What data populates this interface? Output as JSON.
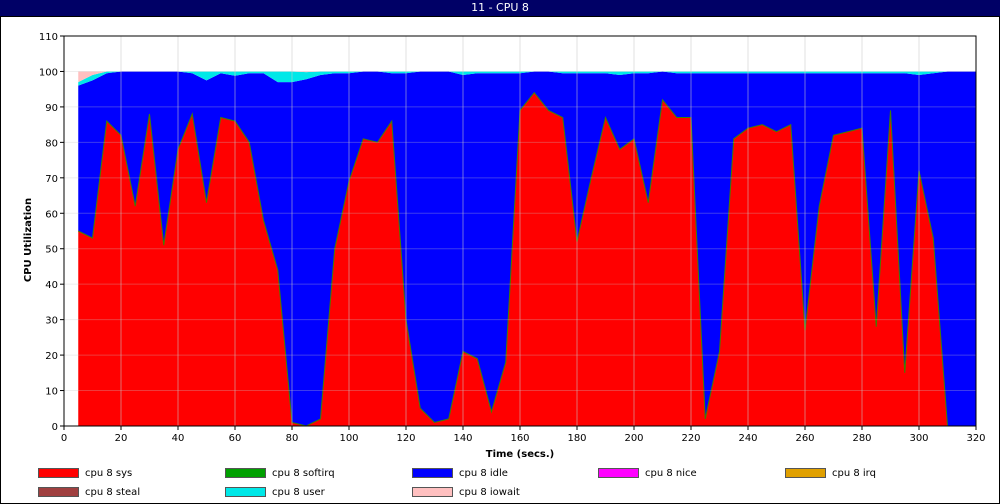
{
  "window": {
    "title": "11 - CPU 8"
  },
  "chart_data": {
    "type": "area",
    "stacked": true,
    "title": "",
    "xlabel": "Time (secs.)",
    "ylabel": "CPU Utilization",
    "xlim": [
      0,
      320
    ],
    "ylim": [
      0,
      110
    ],
    "x_ticks": [
      0,
      20,
      40,
      60,
      80,
      100,
      120,
      140,
      160,
      180,
      200,
      220,
      240,
      260,
      280,
      300,
      320
    ],
    "y_ticks": [
      0,
      10,
      20,
      30,
      40,
      50,
      60,
      70,
      80,
      90,
      100,
      110
    ],
    "grid": true,
    "legend_position": "bottom",
    "x": [
      5,
      10,
      15,
      20,
      25,
      30,
      35,
      40,
      45,
      50,
      55,
      60,
      65,
      70,
      75,
      80,
      85,
      90,
      95,
      100,
      105,
      110,
      115,
      120,
      125,
      130,
      135,
      140,
      145,
      150,
      155,
      160,
      165,
      170,
      175,
      180,
      185,
      190,
      195,
      200,
      205,
      210,
      215,
      220,
      225,
      230,
      235,
      240,
      245,
      250,
      255,
      260,
      265,
      270,
      275,
      280,
      285,
      290,
      295,
      300,
      305,
      310,
      315,
      320
    ],
    "series": [
      {
        "name": "cpu 8 sys",
        "color": "#ff0000",
        "values": [
          55,
          53,
          86,
          82,
          62,
          88,
          51,
          78,
          88,
          63,
          87,
          86,
          80,
          58,
          44,
          1,
          0,
          2,
          50,
          69,
          81,
          80,
          86,
          30,
          5,
          1,
          2,
          21,
          19,
          4,
          18,
          89,
          94,
          89,
          87,
          52,
          70,
          87,
          78,
          81,
          63,
          92,
          87,
          87,
          2,
          21,
          81,
          84,
          85,
          83,
          85,
          27,
          62,
          82,
          83,
          84,
          28,
          89,
          15,
          72,
          53,
          0,
          0,
          0
        ]
      },
      {
        "name": "cpu 8 softirq",
        "color": "#00a000",
        "values": [
          0,
          0,
          0,
          0,
          0,
          0,
          0,
          0,
          0,
          0,
          0,
          0,
          0,
          0,
          0,
          0,
          0,
          0,
          0,
          0,
          0,
          0,
          0,
          0,
          0,
          0,
          0,
          0,
          0,
          0,
          0,
          0,
          0,
          0,
          0,
          0,
          0,
          0,
          0,
          0,
          0,
          0,
          0,
          0,
          0,
          0,
          0,
          0,
          0,
          0,
          0,
          0,
          0,
          0,
          0,
          0,
          0,
          0,
          0,
          0,
          0,
          0,
          0,
          0
        ]
      },
      {
        "name": "cpu 8 idle",
        "color": "#0000ff",
        "values": [
          41,
          44.5,
          13.5,
          18,
          38,
          12,
          49,
          22,
          11.5,
          34.5,
          12.5,
          12.8,
          19.5,
          41.5,
          53,
          96,
          97.8,
          97,
          49.5,
          30.5,
          19,
          20,
          13.5,
          69.5,
          95,
          99,
          98,
          78,
          80.5,
          95.5,
          81.5,
          10.5,
          6,
          11,
          12.5,
          47.5,
          29.5,
          12.5,
          21,
          18.5,
          36.5,
          8,
          12.5,
          12.5,
          97.5,
          78.5,
          18.5,
          15.5,
          14.5,
          16.5,
          14.5,
          72.5,
          37.5,
          17.5,
          16.5,
          15.5,
          71.5,
          10.5,
          84.5,
          27,
          46.5,
          100,
          100,
          100
        ]
      },
      {
        "name": "cpu 8 nice",
        "color": "#ff00ff",
        "values": [
          0,
          0,
          0,
          0,
          0,
          0,
          0,
          0,
          0,
          0,
          0,
          0,
          0,
          0,
          0,
          0,
          0,
          0,
          0,
          0,
          0,
          0,
          0,
          0,
          0,
          0,
          0,
          0,
          0,
          0,
          0,
          0,
          0,
          0,
          0,
          0,
          0,
          0,
          0,
          0,
          0,
          0,
          0,
          0,
          0,
          0,
          0,
          0,
          0,
          0,
          0,
          0,
          0,
          0,
          0,
          0,
          0,
          0,
          0,
          0,
          0,
          0,
          0,
          0
        ]
      },
      {
        "name": "cpu 8 irq",
        "color": "#e0a000",
        "values": [
          0,
          0,
          0,
          0,
          0,
          0,
          0,
          0,
          0,
          0,
          0,
          0,
          0,
          0,
          0,
          0,
          0,
          0,
          0,
          0,
          0,
          0,
          0,
          0,
          0,
          0,
          0,
          0,
          0,
          0,
          0,
          0,
          0,
          0,
          0,
          0,
          0,
          0,
          0,
          0,
          0,
          0,
          0,
          0,
          0,
          0,
          0,
          0,
          0,
          0,
          0,
          0,
          0,
          0,
          0,
          0,
          0,
          0,
          0,
          0,
          0,
          0,
          0,
          0
        ]
      },
      {
        "name": "cpu 8 steal",
        "color": "#a04040",
        "values": [
          0,
          0,
          0,
          0,
          0,
          0,
          0,
          0,
          0,
          0,
          0,
          0,
          0,
          0,
          0,
          0,
          0,
          0,
          0,
          0,
          0,
          0,
          0,
          0,
          0,
          0,
          0,
          0,
          0,
          0,
          0,
          0,
          0,
          0,
          0,
          0,
          0,
          0,
          0,
          0,
          0,
          0,
          0,
          0,
          0,
          0,
          0,
          0,
          0,
          0,
          0,
          0,
          0,
          0,
          0,
          0,
          0,
          0,
          0,
          0,
          0,
          0,
          0,
          0
        ]
      },
      {
        "name": "cpu 8 user",
        "color": "#00e8e8",
        "values": [
          1,
          1.5,
          0.5,
          0,
          0,
          0,
          0,
          0,
          0.5,
          2.5,
          0.5,
          1.2,
          0.5,
          0.5,
          3,
          3,
          2,
          1,
          0.5,
          0.5,
          0,
          0,
          0.5,
          0.5,
          0,
          0,
          0,
          1,
          0.5,
          0.5,
          0.5,
          0.5,
          0,
          0,
          0.5,
          0.5,
          0.5,
          0.5,
          1,
          0.5,
          0.5,
          0,
          0.5,
          0.5,
          0.5,
          0.5,
          0.5,
          0.5,
          0.5,
          0.5,
          0.5,
          0.5,
          0.5,
          0.5,
          0.5,
          0.5,
          0.5,
          0.5,
          0.5,
          1,
          0.5,
          0,
          0,
          0
        ]
      },
      {
        "name": "cpu 8 iowait",
        "color": "#ffc0c0",
        "values": [
          3,
          1,
          0,
          0,
          0,
          0,
          0,
          0,
          0,
          0,
          0,
          0,
          0,
          0,
          0,
          0,
          0.2,
          0,
          0,
          0,
          0,
          0,
          0,
          0,
          0,
          0,
          0,
          0,
          0,
          0,
          0,
          0,
          0,
          0,
          0,
          0,
          0,
          0,
          0,
          0,
          0,
          0,
          0,
          0,
          0,
          0,
          0,
          0,
          0,
          0,
          0,
          0,
          0,
          0,
          0,
          0,
          0,
          0,
          0,
          0,
          0,
          0,
          0,
          0
        ]
      }
    ]
  }
}
